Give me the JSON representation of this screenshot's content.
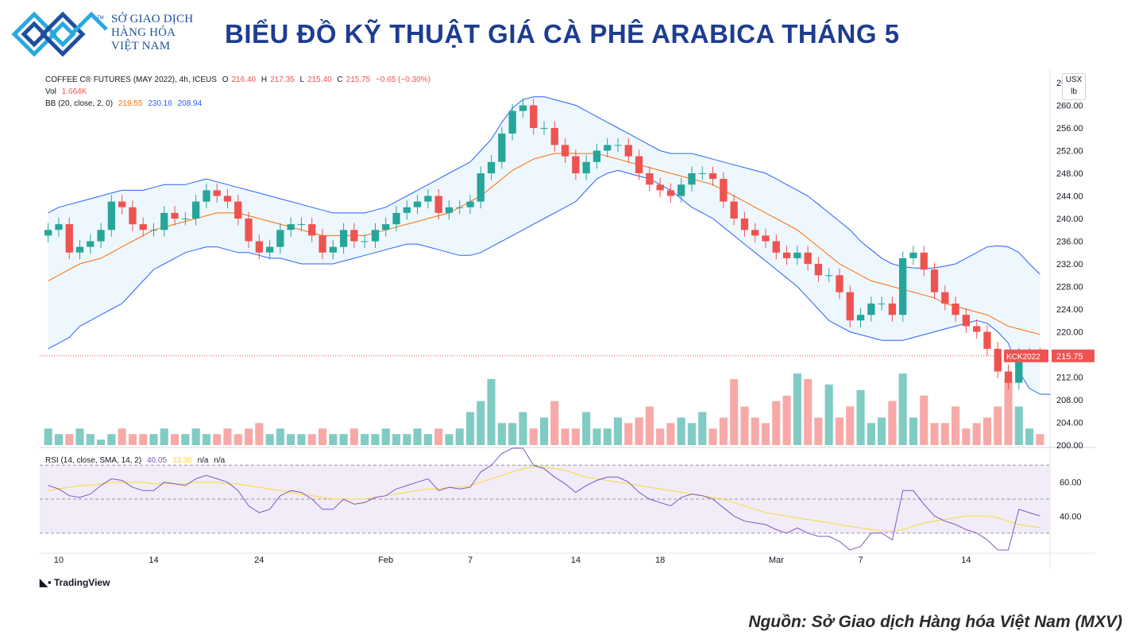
{
  "logo": {
    "line1": "SỞ GIAO DỊCH",
    "line2": "HÀNG HÓA",
    "line3": "VIỆT NAM",
    "tm": "TM",
    "brand_color": "#1d4f9e",
    "accent_color": "#2aa8e0"
  },
  "headline": "BIỂU ĐỒ KỸ THUẬT GIÁ CÀ PHÊ ARABICA THÁNG 5",
  "legend": {
    "symbol": "COFFEE C® FUTURES (MAY 2022), 4h, ICEUS",
    "o_label": "O",
    "o_value": "216.40",
    "h_label": "H",
    "h_value": "217.35",
    "l_label": "L",
    "l_value": "215.40",
    "c_label": "C",
    "c_value": "215.75",
    "change": "−0.65 (−0.30%)",
    "vol_label": "Vol",
    "vol_value": "1.664K",
    "bb_label": "BB (20, close, 2, 0)",
    "bb_mid": "219.55",
    "bb_upper": "230.16",
    "bb_lower": "208.94",
    "rsi_label": "RSI (14, close, SMA, 14, 2)",
    "rsi_value": "40.05",
    "rsi_sma": "33.30",
    "rsi_na1": "n/a",
    "rsi_na2": "n/a"
  },
  "unit": {
    "currency": "USX",
    "unit": "lb"
  },
  "last_price_tag": {
    "symbol": "KCK2022",
    "price": "215.75"
  },
  "tv_brand": "TradingView",
  "source": "Nguồn: Sở Giao dịch Hàng hóa Việt Nam (MXV)",
  "colors": {
    "up": "#26a69a",
    "down": "#ef5350",
    "bb_band": "#2962ff",
    "bb_mid": "#ff6d00",
    "rsi": "#7e57c2",
    "rsi_sma": "#fdd835",
    "rsi_bg": "#ede7f6"
  },
  "chart_data": [
    {
      "type": "candlestick",
      "price_axis_ticks": [
        "200.00",
        "204.00",
        "208.00",
        "212.00",
        "216.00",
        "220.00",
        "224.00",
        "228.00",
        "232.00",
        "236.00",
        "240.00",
        "244.00",
        "248.00",
        "252.00",
        "256.00",
        "260.00",
        "264.00"
      ],
      "ylim": [
        200,
        264
      ],
      "x_tick_labels": [
        {
          "label": "10",
          "index": 1
        },
        {
          "label": "14",
          "index": 10
        },
        {
          "label": "24",
          "index": 20
        },
        {
          "label": "Feb",
          "index": 32
        },
        {
          "label": "7",
          "index": 40
        },
        {
          "label": "14",
          "index": 50
        },
        {
          "label": "18",
          "index": 58
        },
        {
          "label": "Mar",
          "index": 69
        },
        {
          "label": "7",
          "index": 77
        },
        {
          "label": "14",
          "index": 87
        }
      ],
      "close_series": [
        238,
        239,
        234,
        235,
        236,
        238,
        243,
        242,
        239,
        238,
        238,
        241,
        240,
        240,
        243,
        245,
        244,
        243,
        240,
        236,
        234,
        235,
        238,
        239,
        239,
        237,
        234,
        235,
        238,
        236,
        236,
        238,
        239,
        241,
        242,
        243,
        244,
        241,
        242,
        242,
        243,
        248,
        250,
        255,
        259,
        260,
        256,
        256,
        253,
        251,
        248,
        250,
        252,
        253,
        253,
        251,
        248,
        246,
        245,
        244,
        246,
        248,
        248,
        247,
        243,
        240,
        238,
        237,
        236,
        234,
        233,
        234,
        232,
        230,
        230,
        227,
        222,
        223,
        225,
        225,
        223,
        233,
        234,
        231,
        227,
        225,
        223,
        221,
        220,
        217,
        213,
        211,
        216,
        216,
        215.75
      ],
      "bb_upper": [
        241,
        242,
        242.5,
        243,
        243.5,
        244,
        244.5,
        245,
        245,
        245,
        245.5,
        246,
        246,
        246,
        246.5,
        247,
        246.5,
        246,
        245.5,
        245,
        244.5,
        244,
        243.5,
        243,
        242.5,
        242,
        241.5,
        241,
        241,
        241,
        241,
        241.5,
        242,
        243,
        244,
        245,
        246,
        247,
        248,
        249,
        250,
        252,
        254,
        257,
        259.5,
        261,
        261.5,
        261.5,
        261,
        260.5,
        260,
        259,
        258,
        257,
        256,
        255,
        254,
        253,
        252,
        251.5,
        251.5,
        251.5,
        251,
        250.5,
        250,
        249.5,
        249,
        248.5,
        248,
        247,
        246,
        245,
        244,
        242.5,
        241,
        239.5,
        238,
        236,
        234.5,
        233,
        232,
        231.5,
        231.3,
        231.2,
        231.3,
        231.6,
        232,
        233,
        234,
        235,
        235.2,
        235,
        234,
        232,
        230.16
      ],
      "bb_mid": [
        229,
        230,
        231,
        232,
        232.5,
        233,
        234,
        235,
        236,
        237,
        238,
        238.5,
        239,
        239.5,
        240,
        240.5,
        241,
        241,
        241,
        240.5,
        240,
        239.5,
        239,
        238.5,
        238,
        237.5,
        237,
        237,
        237,
        237,
        237,
        237.5,
        238,
        238.5,
        239,
        239.5,
        240,
        240.5,
        241,
        242,
        243,
        244,
        245.5,
        247,
        248.5,
        249.5,
        250.5,
        251,
        251.5,
        251.5,
        251.5,
        251.5,
        251.5,
        251,
        250.5,
        250,
        249.5,
        249,
        248.5,
        248,
        247.5,
        247,
        246.5,
        246,
        245,
        244,
        243,
        242,
        241,
        240,
        239,
        238,
        236.5,
        235,
        233.5,
        232,
        231,
        230,
        229,
        228.5,
        228,
        227.5,
        227,
        226.5,
        226,
        225,
        224.5,
        224,
        223.5,
        223,
        222,
        221,
        220.5,
        220,
        219.55
      ],
      "bb_lower": [
        217,
        218,
        219,
        221,
        222,
        223,
        224,
        225,
        227,
        229,
        231,
        232,
        233,
        234,
        234.5,
        235,
        235,
        234.5,
        234,
        234,
        233.5,
        233,
        233,
        232.5,
        232,
        232,
        232,
        232,
        232.5,
        233,
        233.5,
        234,
        234.5,
        235,
        235.5,
        235.5,
        235,
        234.5,
        234,
        233.5,
        233.5,
        234,
        235,
        236,
        237,
        238,
        239,
        240,
        241,
        242,
        243,
        245,
        247,
        248,
        248.5,
        248,
        247.5,
        247,
        246,
        245,
        243.5,
        242,
        241,
        240,
        238.5,
        237,
        235.5,
        234,
        232.5,
        231,
        229.5,
        228,
        226,
        224,
        222,
        221,
        220,
        219.5,
        219,
        218.5,
        218.5,
        218.5,
        219,
        219.5,
        220,
        220.5,
        221,
        221.5,
        222,
        221.5,
        220,
        218,
        213,
        210,
        209,
        208.94
      ],
      "volume_series": [
        3,
        2,
        2,
        3,
        2,
        1,
        2,
        3,
        2,
        2,
        2,
        3,
        2,
        2,
        3,
        2,
        2,
        3,
        2,
        3,
        4,
        2,
        3,
        2,
        2,
        2,
        3,
        2,
        2,
        3,
        2,
        2,
        3,
        2,
        2,
        3,
        2,
        3,
        2,
        3,
        6,
        8,
        12,
        4,
        4,
        6,
        3,
        5,
        8,
        3,
        3,
        6,
        3,
        3,
        5,
        4,
        5,
        7,
        3,
        4,
        5,
        4,
        6,
        3,
        5,
        12,
        7,
        5,
        4,
        8,
        9,
        13,
        12,
        5,
        11,
        5,
        7,
        10,
        4,
        5,
        8,
        13,
        5,
        9,
        4,
        4,
        7,
        3,
        4,
        5,
        7,
        12,
        7,
        3,
        2
      ],
      "rsi_ticks": [
        "40.00",
        "60.00"
      ],
      "rsi_series": [
        58,
        56,
        52,
        51,
        53,
        58,
        62,
        61,
        57,
        55,
        55,
        60,
        59,
        58,
        62,
        64,
        62,
        60,
        55,
        46,
        42,
        44,
        52,
        55,
        54,
        50,
        44,
        44,
        50,
        47,
        48,
        51,
        52,
        56,
        58,
        60,
        62,
        55,
        57,
        56,
        57,
        66,
        70,
        77,
        80,
        80,
        70,
        68,
        63,
        59,
        54,
        58,
        61,
        63,
        63,
        60,
        54,
        50,
        48,
        46,
        51,
        53,
        52,
        50,
        45,
        40,
        37,
        36,
        35,
        32,
        30,
        33,
        30,
        28,
        28,
        25,
        20,
        22,
        30,
        30,
        26,
        55,
        55,
        47,
        40,
        37,
        35,
        32,
        30,
        26,
        20,
        18,
        44,
        42,
        40.05
      ],
      "rsi_sma_series": [
        55,
        56,
        57,
        58,
        58,
        59,
        60,
        60,
        60,
        60,
        59,
        59,
        59,
        59,
        60,
        60,
        60,
        59,
        59,
        58,
        57,
        56,
        55,
        54,
        53,
        52,
        51,
        50,
        50,
        50,
        50,
        51,
        52,
        53,
        54,
        55,
        56,
        56,
        57,
        57,
        58,
        60,
        62,
        64,
        66,
        68,
        69,
        69,
        68,
        67,
        65,
        63,
        62,
        61,
        60,
        59,
        58,
        57,
        56,
        55,
        54,
        53,
        52,
        51,
        50,
        48,
        46,
        44,
        42,
        41,
        40,
        39,
        38,
        37,
        36,
        35,
        34,
        33,
        32,
        31,
        31,
        32,
        34,
        36,
        37,
        38,
        39,
        40,
        40,
        40,
        39,
        37,
        35,
        34,
        33.3
      ]
    }
  ]
}
